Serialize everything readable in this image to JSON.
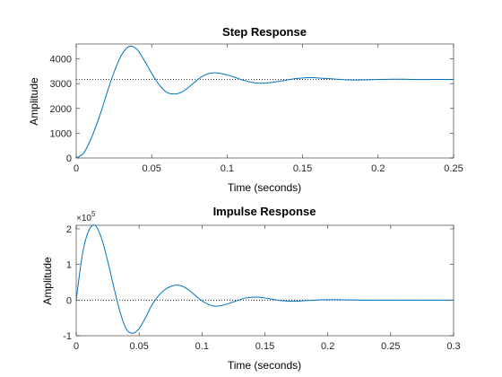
{
  "chart_data": [
    {
      "type": "line",
      "title": "Step Response",
      "xlabel": "Time (seconds)",
      "ylabel": "Amplitude",
      "xlim": [
        0,
        0.25
      ],
      "ylim": [
        0,
        4600
      ],
      "xticks": [
        0,
        0.05,
        0.1,
        0.15,
        0.2,
        0.25
      ],
      "xtick_labels": [
        "0",
        "0.05",
        "0.1",
        "0.15",
        "0.2",
        "0.25"
      ],
      "yticks": [
        0,
        1000,
        2000,
        3000,
        4000
      ],
      "ytick_labels": [
        "0",
        "1000",
        "2000",
        "3000",
        "4000"
      ],
      "grid": false,
      "reference_line": {
        "y": 3170,
        "style": "dotted"
      },
      "series": [
        {
          "color": "#0072BD",
          "x": [
            0,
            0.005,
            0.01,
            0.015,
            0.02,
            0.025,
            0.03,
            0.035,
            0.04,
            0.045,
            0.05,
            0.055,
            0.06,
            0.065,
            0.07,
            0.075,
            0.08,
            0.085,
            0.09,
            0.095,
            0.1,
            0.105,
            0.11,
            0.115,
            0.12,
            0.125,
            0.13,
            0.135,
            0.14,
            0.145,
            0.15,
            0.155,
            0.16,
            0.165,
            0.17,
            0.175,
            0.18,
            0.19,
            0.2,
            0.21,
            0.22,
            0.23,
            0.24,
            0.25
          ],
          "y": [
            0,
            200,
            800,
            1600,
            2550,
            3450,
            4150,
            4500,
            4400,
            3950,
            3420,
            2950,
            2650,
            2580,
            2660,
            2880,
            3140,
            3340,
            3430,
            3420,
            3350,
            3260,
            3150,
            3070,
            3020,
            3020,
            3050,
            3100,
            3150,
            3200,
            3230,
            3240,
            3230,
            3210,
            3190,
            3170,
            3150,
            3150,
            3170,
            3180,
            3175,
            3165,
            3170,
            3170
          ]
        }
      ]
    },
    {
      "type": "line",
      "title": "Impulse Response",
      "xlabel": "Time (seconds)",
      "ylabel": "Amplitude",
      "exponent_label": "×10",
      "exponent_power": "5",
      "xlim": [
        0,
        0.3
      ],
      "ylim": [
        -1,
        2.1
      ],
      "xticks": [
        0,
        0.05,
        0.1,
        0.15,
        0.2,
        0.25,
        0.3
      ],
      "xtick_labels": [
        "0",
        "0.05",
        "0.1",
        "0.15",
        "0.2",
        "0.25",
        "0.3"
      ],
      "yticks": [
        -1,
        0,
        1,
        2
      ],
      "ytick_labels": [
        "-1",
        "0",
        "1",
        "2"
      ],
      "grid": false,
      "reference_line": {
        "y": 0,
        "style": "dotted"
      },
      "series": [
        {
          "color": "#0072BD",
          "x": [
            0,
            0.005,
            0.01,
            0.015,
            0.02,
            0.025,
            0.03,
            0.035,
            0.04,
            0.045,
            0.05,
            0.055,
            0.06,
            0.065,
            0.07,
            0.075,
            0.08,
            0.085,
            0.09,
            0.095,
            0.1,
            0.105,
            0.11,
            0.115,
            0.12,
            0.125,
            0.13,
            0.135,
            0.14,
            0.145,
            0.15,
            0.155,
            0.16,
            0.165,
            0.17,
            0.175,
            0.18,
            0.19,
            0.2,
            0.21,
            0.22,
            0.23,
            0.24,
            0.25,
            0.26,
            0.28,
            0.3
          ],
          "y": [
            0,
            1.3,
            1.95,
            2.1,
            1.75,
            1.1,
            0.35,
            -0.35,
            -0.82,
            -0.93,
            -0.8,
            -0.5,
            -0.15,
            0.1,
            0.28,
            0.38,
            0.42,
            0.38,
            0.27,
            0.12,
            -0.02,
            -0.12,
            -0.17,
            -0.16,
            -0.11,
            -0.05,
            0.01,
            0.06,
            0.08,
            0.08,
            0.06,
            0.03,
            0.0,
            -0.02,
            -0.03,
            -0.03,
            -0.02,
            0.0,
            0.01,
            0.01,
            0.005,
            0.0,
            0.0,
            0.0,
            0.0,
            0.0,
            0.0
          ]
        }
      ]
    }
  ]
}
